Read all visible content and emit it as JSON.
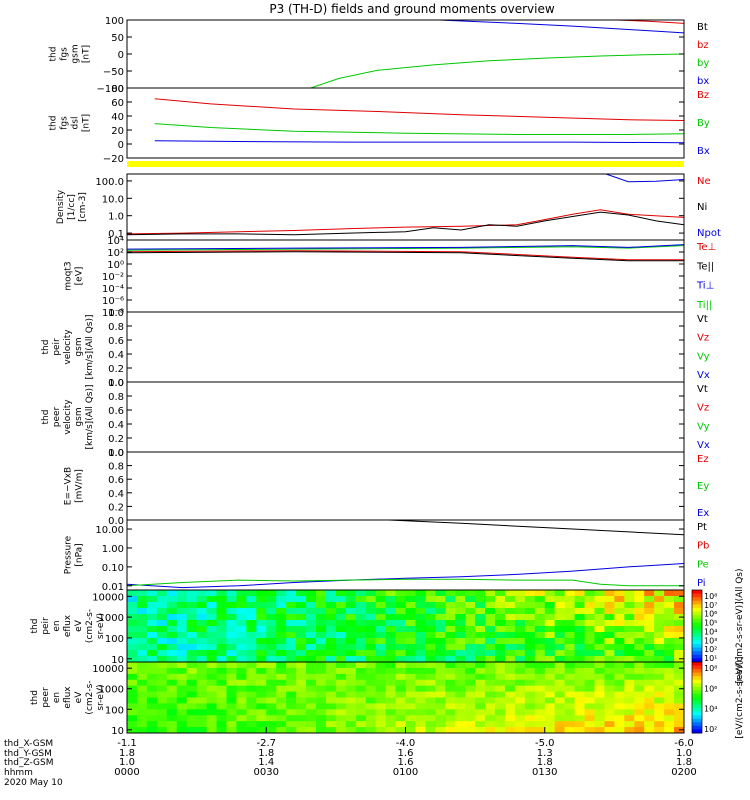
{
  "title": "P3 (TH-D) fields and ground moments overview",
  "footer": {
    "row_labels": [
      "thd_X-GSM",
      "thd_Y-GSM",
      "thd_Z-GSM",
      "hhmm",
      "2020 May 10"
    ],
    "columns": [
      {
        "x": "-1.1",
        "y": "1.8",
        "z": "1.0",
        "hhmm": "0000"
      },
      {
        "x": "-2.7",
        "y": "1.8",
        "z": "1.4",
        "hhmm": "0030"
      },
      {
        "x": "-4.0",
        "y": "1.6",
        "z": "1.6",
        "hhmm": "0100"
      },
      {
        "x": "-5.0",
        "y": "1.3",
        "z": "1.8",
        "hhmm": "0130"
      },
      {
        "x": "-6.0",
        "y": "1.0",
        "z": "1.8",
        "hhmm": "0200"
      }
    ]
  },
  "colors": {
    "black": "#000000",
    "red": "#e00000",
    "green": "#00c800",
    "blue": "#0000e0",
    "yellow": "#ffff00"
  },
  "chart_data": [
    {
      "type": "line",
      "id": "fgs_gsm",
      "ylabel": [
        "thd",
        "fgs",
        "gsm",
        "[nT]"
      ],
      "ylim": [
        -100,
        100
      ],
      "yticks": [
        "100",
        "50",
        "0",
        "−50",
        "−100"
      ],
      "legend": [
        {
          "text": "Bt",
          "color": "#000000"
        },
        {
          "text": "bz",
          "color": "#e00000"
        },
        {
          "text": "by",
          "color": "#00c800"
        },
        {
          "text": "bx",
          "color": "#0000e0"
        }
      ],
      "series": [
        {
          "color": "#0000e0",
          "x": [
            0.56,
            0.7,
            0.8,
            0.9,
            1.0
          ],
          "y": [
            100,
            90,
            82,
            72,
            62
          ]
        },
        {
          "color": "#e00000",
          "x": [
            0.88,
            0.94,
            1.0
          ],
          "y": [
            100,
            96,
            90
          ]
        },
        {
          "color": "#00c800",
          "x": [
            0.33,
            0.38,
            0.45,
            0.55,
            0.65,
            0.75,
            0.85,
            0.93,
            1.0
          ],
          "y": [
            -100,
            -72,
            -48,
            -32,
            -20,
            -12,
            -6,
            -2,
            0
          ]
        }
      ]
    },
    {
      "type": "line",
      "id": "fgs_dsl",
      "ylabel": [
        "thd",
        "fgs",
        "dsl",
        "[nT]"
      ],
      "ylim": [
        -30,
        80
      ],
      "yticks": [
        "80",
        "60",
        "40",
        "20",
        "0",
        "−20"
      ],
      "legend": [
        {
          "text": "Bz",
          "color": "#e00000"
        },
        {
          "text": "By",
          "color": "#00c800"
        },
        {
          "text": "Bx",
          "color": "#0000e0"
        }
      ],
      "series": [
        {
          "color": "#e00000",
          "x": [
            0.05,
            0.15,
            0.3,
            0.45,
            0.6,
            0.75,
            0.9,
            1.0
          ],
          "y": [
            63,
            55,
            47,
            43,
            38,
            34,
            30,
            29
          ]
        },
        {
          "color": "#00c800",
          "x": [
            0.05,
            0.15,
            0.3,
            0.5,
            0.7,
            0.9,
            1.0
          ],
          "y": [
            24,
            18,
            12,
            9,
            7,
            7,
            8
          ]
        },
        {
          "color": "#0000e0",
          "x": [
            0.05,
            0.2,
            0.4,
            0.6,
            0.8,
            1.0
          ],
          "y": [
            -3,
            -4,
            -5,
            -5,
            -5,
            -6
          ]
        }
      ]
    },
    {
      "type": "line",
      "id": "density",
      "ylabel": [
        "Density",
        "[1/cc]",
        "[cm-3]"
      ],
      "yscale": "log",
      "ylim": [
        0.04,
        250
      ],
      "yticks": [
        "100.0",
        "10.0",
        "1.0",
        "0.1"
      ],
      "ytick_values": [
        100,
        10,
        1,
        0.1
      ],
      "legend": [
        {
          "text": "Ne",
          "color": "#e00000"
        },
        {
          "text": "Ni",
          "color": "#000000"
        },
        {
          "text": "Npot",
          "color": "#0000e0"
        }
      ],
      "series": [
        {
          "color": "#0000e0",
          "x": [
            0.86,
            0.88,
            0.9,
            0.95,
            1.0
          ],
          "y": [
            250,
            150,
            90,
            95,
            120
          ]
        },
        {
          "color": "#e00000",
          "x": [
            0.0,
            0.1,
            0.2,
            0.3,
            0.4,
            0.5,
            0.6,
            0.7,
            0.75,
            0.8,
            0.85,
            0.9,
            1.0
          ],
          "y": [
            0.09,
            0.1,
            0.12,
            0.14,
            0.18,
            0.22,
            0.25,
            0.3,
            0.6,
            1.2,
            2.2,
            1.2,
            0.8
          ]
        },
        {
          "color": "#000000",
          "x": [
            0.0,
            0.1,
            0.2,
            0.3,
            0.4,
            0.5,
            0.55,
            0.6,
            0.65,
            0.7,
            0.75,
            0.8,
            0.85,
            0.9,
            0.95,
            1.0
          ],
          "y": [
            0.08,
            0.09,
            0.09,
            0.08,
            0.1,
            0.12,
            0.2,
            0.15,
            0.3,
            0.25,
            0.5,
            0.9,
            1.6,
            1.1,
            0.5,
            0.3
          ]
        }
      ]
    },
    {
      "type": "line",
      "id": "temperature",
      "ylabel": [
        "moqt3",
        "[eV]"
      ],
      "yscale": "log",
      "ylim": [
        0.01,
        15000
      ],
      "yticks": [
        "10⁴",
        "10²",
        "10⁰",
        "10⁻²",
        "10⁻⁴",
        "10⁻⁶",
        "10⁻⁸"
      ],
      "legend": [
        {
          "text": "Te⊥",
          "color": "#e00000"
        },
        {
          "text": "Te||",
          "color": "#000000"
        },
        {
          "text": "Ti⊥",
          "color": "#0000e0"
        },
        {
          "text": "Ti||",
          "color": "#00c800"
        }
      ],
      "series": [
        {
          "color": "#00c800",
          "x": [
            0,
            0.3,
            0.6,
            0.8,
            0.9,
            1.0
          ],
          "y": [
            2000,
            2500,
            3000,
            4000,
            3000,
            5000
          ]
        },
        {
          "color": "#0000e0",
          "x": [
            0,
            0.3,
            0.6,
            0.8,
            0.9,
            1.0
          ],
          "y": [
            2500,
            3000,
            3500,
            5000,
            3500,
            6000
          ]
        },
        {
          "color": "#e00000",
          "x": [
            0,
            0.3,
            0.6,
            0.8,
            0.9,
            1.0
          ],
          "y": [
            1500,
            1800,
            1500,
            500,
            300,
            300
          ]
        },
        {
          "color": "#000000",
          "x": [
            0,
            0.3,
            0.6,
            0.8,
            0.9,
            1.0
          ],
          "y": [
            1200,
            1500,
            1200,
            400,
            250,
            250
          ]
        }
      ]
    },
    {
      "type": "line",
      "id": "peir_velocity",
      "ylabel": [
        "thd",
        "peir",
        "velocity",
        "gsm",
        "[km/s](All Qs)]"
      ],
      "ylim": [
        0,
        1
      ],
      "yticks": [
        "1.0",
        "0.8",
        "0.6",
        "0.4",
        "0.2",
        "0.0"
      ],
      "legend": [
        {
          "text": "Vt",
          "color": "#000000"
        },
        {
          "text": "Vz",
          "color": "#e00000"
        },
        {
          "text": "Vy",
          "color": "#00c800"
        },
        {
          "text": "Vx",
          "color": "#0000e0"
        }
      ],
      "series": []
    },
    {
      "type": "line",
      "id": "peer_velocity",
      "ylabel": [
        "thd",
        "peer",
        "velocity",
        "gsm",
        "[km/s](All Qs)]"
      ],
      "ylim": [
        0,
        1
      ],
      "yticks": [
        "1.0",
        "0.8",
        "0.6",
        "0.4",
        "0.2",
        "0.0"
      ],
      "legend": [
        {
          "text": "Vt",
          "color": "#000000"
        },
        {
          "text": "Vz",
          "color": "#e00000"
        },
        {
          "text": "Vy",
          "color": "#00c800"
        },
        {
          "text": "Vx",
          "color": "#0000e0"
        }
      ],
      "series": []
    },
    {
      "type": "line",
      "id": "efield",
      "ylabel": [
        "E=−VxB",
        "[mV/m]"
      ],
      "ylim": [
        0,
        1
      ],
      "yticks": [
        "1.0",
        "0.8",
        "0.6",
        "0.4",
        "0.2",
        "0.0"
      ],
      "legend": [
        {
          "text": "Ez",
          "color": "#e00000"
        },
        {
          "text": "Ey",
          "color": "#00c800"
        },
        {
          "text": "Ex",
          "color": "#0000e0"
        }
      ],
      "series": []
    },
    {
      "type": "line",
      "id": "pressure",
      "ylabel": [
        "Pressure",
        "[nPa]"
      ],
      "yscale": "log",
      "ylim": [
        0.006,
        30
      ],
      "yticks": [
        "10.00",
        "1.00",
        "0.10",
        "0.01"
      ],
      "ytick_values": [
        10,
        1,
        0.1,
        0.01
      ],
      "legend": [
        {
          "text": "Pt",
          "color": "#000000"
        },
        {
          "text": "Pb",
          "color": "#e00000"
        },
        {
          "text": "Pe",
          "color": "#00c800"
        },
        {
          "text": "Pi",
          "color": "#0000e0"
        }
      ],
      "series": [
        {
          "color": "#000000",
          "x": [
            0.47,
            0.6,
            0.8,
            1.0
          ],
          "y": [
            30,
            20,
            10,
            5
          ]
        },
        {
          "color": "#0000e0",
          "x": [
            0.0,
            0.1,
            0.2,
            0.3,
            0.4,
            0.5,
            0.6,
            0.7,
            0.8,
            0.9,
            1.0
          ],
          "y": [
            0.012,
            0.008,
            0.01,
            0.015,
            0.02,
            0.025,
            0.03,
            0.04,
            0.06,
            0.1,
            0.15
          ]
        },
        {
          "color": "#00c800",
          "x": [
            0.0,
            0.1,
            0.2,
            0.3,
            0.4,
            0.5,
            0.6,
            0.7,
            0.8,
            0.85,
            0.9,
            1.0
          ],
          "y": [
            0.01,
            0.015,
            0.02,
            0.018,
            0.02,
            0.022,
            0.022,
            0.02,
            0.02,
            0.012,
            0.01,
            0.01
          ]
        }
      ]
    },
    {
      "type": "heatmap",
      "id": "peir_eflux",
      "ylabel": [
        "thd",
        "peir",
        "en",
        "eflux",
        "eV",
        "(cm2-s-",
        "sr-eV)"
      ],
      "yscale": "log",
      "ylim": [
        7,
        20000
      ],
      "yticks": [
        "10000",
        "1000",
        "100",
        "10"
      ],
      "ytick_values": [
        10000,
        1000,
        100,
        10
      ],
      "colorbar": {
        "label": "[eV/(cm2-s-sr-eV)](All Qs)",
        "ticks": [
          "10⁸",
          "10⁷",
          "10⁶",
          "10⁵",
          "10⁴",
          "10³",
          "10²",
          "10¹"
        ]
      }
    },
    {
      "type": "heatmap",
      "id": "peer_eflux",
      "ylabel": [
        "thd",
        "peer",
        "en",
        "eflux",
        "eV",
        "(cm2-s-",
        "sr-eV)"
      ],
      "yscale": "log",
      "ylim": [
        7,
        20000
      ],
      "yticks": [
        "10000",
        "1000",
        "100",
        "10"
      ],
      "ytick_values": [
        10000,
        1000,
        100,
        10
      ],
      "colorbar": {
        "label": "[eV/(cm2-s-sr-eV)]",
        "ticks": [
          "10⁸",
          "10⁶",
          "10⁴",
          "10²"
        ]
      }
    }
  ]
}
